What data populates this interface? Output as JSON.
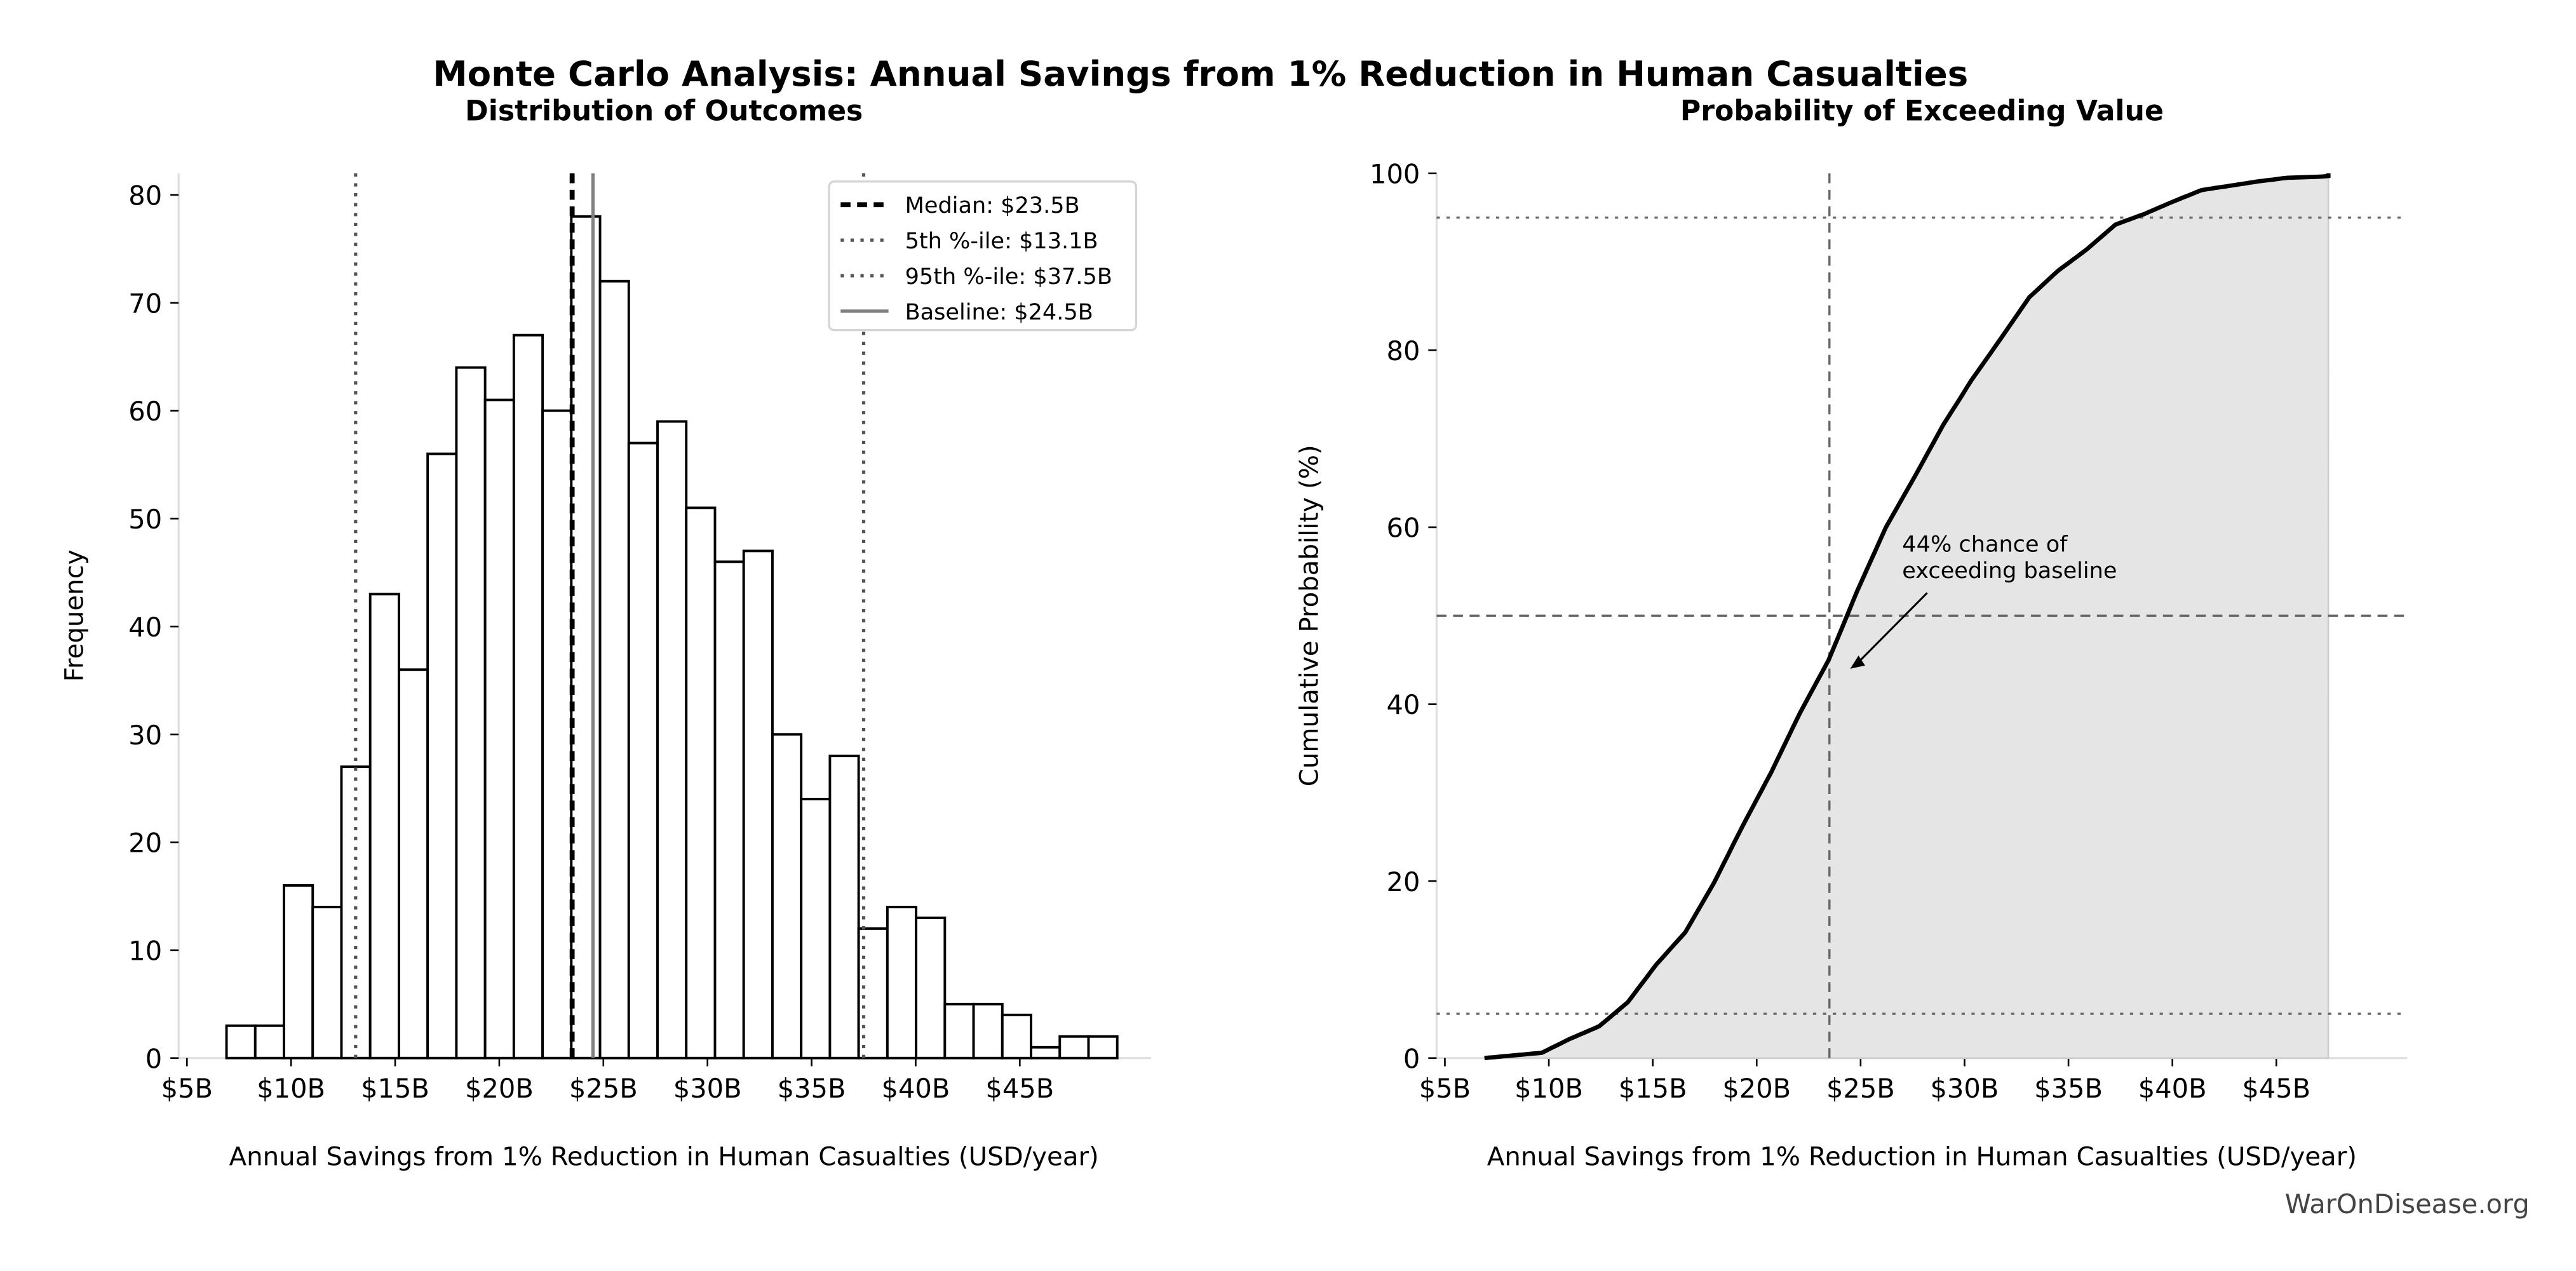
{
  "title": "Monte Carlo Analysis: Annual Savings from 1% Reduction in Human Casualties",
  "watermark": "WarOnDisease.org",
  "chart_data": [
    {
      "type": "bar",
      "subtitle": "Distribution of Outcomes",
      "xlabel": "Annual Savings from 1% Reduction in Human Casualties (USD/year)",
      "ylabel": "Frequency",
      "xlim": [
        4.6,
        51.3
      ],
      "ylim": [
        0,
        82
      ],
      "xticks": [
        5,
        10,
        15,
        20,
        25,
        30,
        35,
        40,
        45
      ],
      "xtick_labels": [
        "$5B",
        "$10B",
        "$15B",
        "$20B",
        "$25B",
        "$30B",
        "$35B",
        "$40B",
        "$45B"
      ],
      "yticks": [
        0,
        10,
        20,
        30,
        40,
        50,
        60,
        70,
        80
      ],
      "bin_start": 6.9,
      "bin_width": 1.38,
      "values": [
        3,
        3,
        16,
        14,
        27,
        43,
        36,
        56,
        64,
        61,
        67,
        60,
        78,
        72,
        57,
        59,
        51,
        46,
        47,
        30,
        24,
        28,
        12,
        14,
        13,
        5,
        5,
        4,
        1,
        2,
        2
      ],
      "lines": [
        {
          "name": "median",
          "label": "Median: $23.5B",
          "x": 23.5,
          "color": "#000000",
          "style": "dashed"
        },
        {
          "name": "p5",
          "label": "5th %-ile: $13.1B",
          "x": 13.1,
          "color": "#555555",
          "style": "dotted"
        },
        {
          "name": "p95",
          "label": "95th %-ile: $37.5B",
          "x": 37.5,
          "color": "#555555",
          "style": "dotted"
        },
        {
          "name": "baseline",
          "label": "Baseline: $24.5B",
          "x": 24.5,
          "color": "#808080",
          "style": "solid"
        }
      ],
      "legend": "top-right",
      "grid": false
    },
    {
      "type": "area",
      "subtitle": "Probability of Exceeding Value",
      "xlabel": "Annual Savings from 1% Reduction in Human Casualties (USD/year)",
      "ylabel": "Cumulative Probability (%)",
      "xlim": [
        4.6,
        51.3
      ],
      "ylim": [
        0,
        100
      ],
      "xticks": [
        5,
        10,
        15,
        20,
        25,
        30,
        35,
        40,
        45
      ],
      "xtick_labels": [
        "$5B",
        "$10B",
        "$15B",
        "$20B",
        "$25B",
        "$30B",
        "$35B",
        "$40B",
        "$45B"
      ],
      "yticks": [
        0,
        20,
        40,
        60,
        80,
        100
      ],
      "x_range": [
        6.9,
        47.5
      ],
      "hlines": [
        {
          "y": 5,
          "style": "dotted"
        },
        {
          "y": 95,
          "style": "dotted"
        },
        {
          "y": 50,
          "style": "dashed"
        }
      ],
      "vline": {
        "x": 23.5,
        "style": "dashed"
      },
      "annotation": {
        "line1": "44% chance of",
        "line2": "exceeding baseline",
        "target_x": 24.5,
        "target_y": 44,
        "text_x": 27,
        "text_y": 55
      },
      "fill_color": "#e5e5e5",
      "grid": false
    }
  ]
}
